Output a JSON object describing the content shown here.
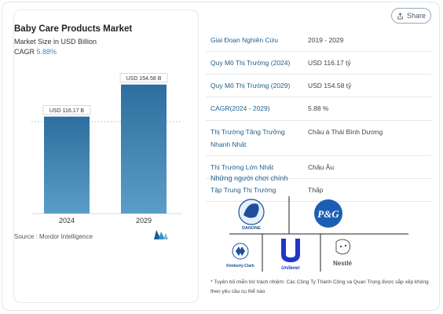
{
  "share": {
    "label": "Share",
    "icon": "share-icon"
  },
  "chart": {
    "title": "Baby Care Products Market",
    "subtitle": "Market Size in USD Billion",
    "cagr_label": "CAGR",
    "cagr_value": "5.88%",
    "source": "Source : Mordor Intelligence",
    "bar_color_bottom": "#5b9dc9",
    "bar_color_top": "#2e6e9e"
  },
  "chart_data": {
    "type": "bar",
    "title": "Baby Care Products Market",
    "ylabel": "Market Size in USD Billion",
    "categories": [
      "2024",
      "2029"
    ],
    "values": [
      116.17,
      154.58
    ],
    "data_labels": [
      "USD 116.17 B",
      "USD 154.58 B"
    ],
    "ylim": [
      0,
      175
    ],
    "grid": false
  },
  "table": [
    {
      "key": "Giai Đoạn Nghiên Cứu",
      "value": "2019 - 2029"
    },
    {
      "key": "Quy Mô Thị Trường (2024)",
      "value": "USD 116.17 tỷ"
    },
    {
      "key": "Quy Mô Thị Trường (2029)",
      "value": "USD 154.58 tỷ"
    },
    {
      "key": "CAGR(2024 - 2029)",
      "value": "5.88 %"
    },
    {
      "key": "Thị Trường Tăng Trưởng Nhanh Nhất",
      "value": "Châu á Thái Bình Dương"
    },
    {
      "key": "Thị Trường Lớn Nhất",
      "value": "Châu Âu"
    },
    {
      "key": "Tập Trung Thị Trường",
      "value": "Thấp"
    }
  ],
  "players": {
    "title": "Những người chơi chính",
    "logos": {
      "danone": "DANONE",
      "pg": "P&G",
      "kimberly": "Kimberly-Clark",
      "unilever": "Unilever",
      "nestle": "Nestlé"
    }
  },
  "disclaimer": "* Tuyên bố miễn trừ trách nhiệm: Các Công Ty Thành Công và Quan Trọng được sắp xếp không theo yêu cầu cụ thể nào"
}
